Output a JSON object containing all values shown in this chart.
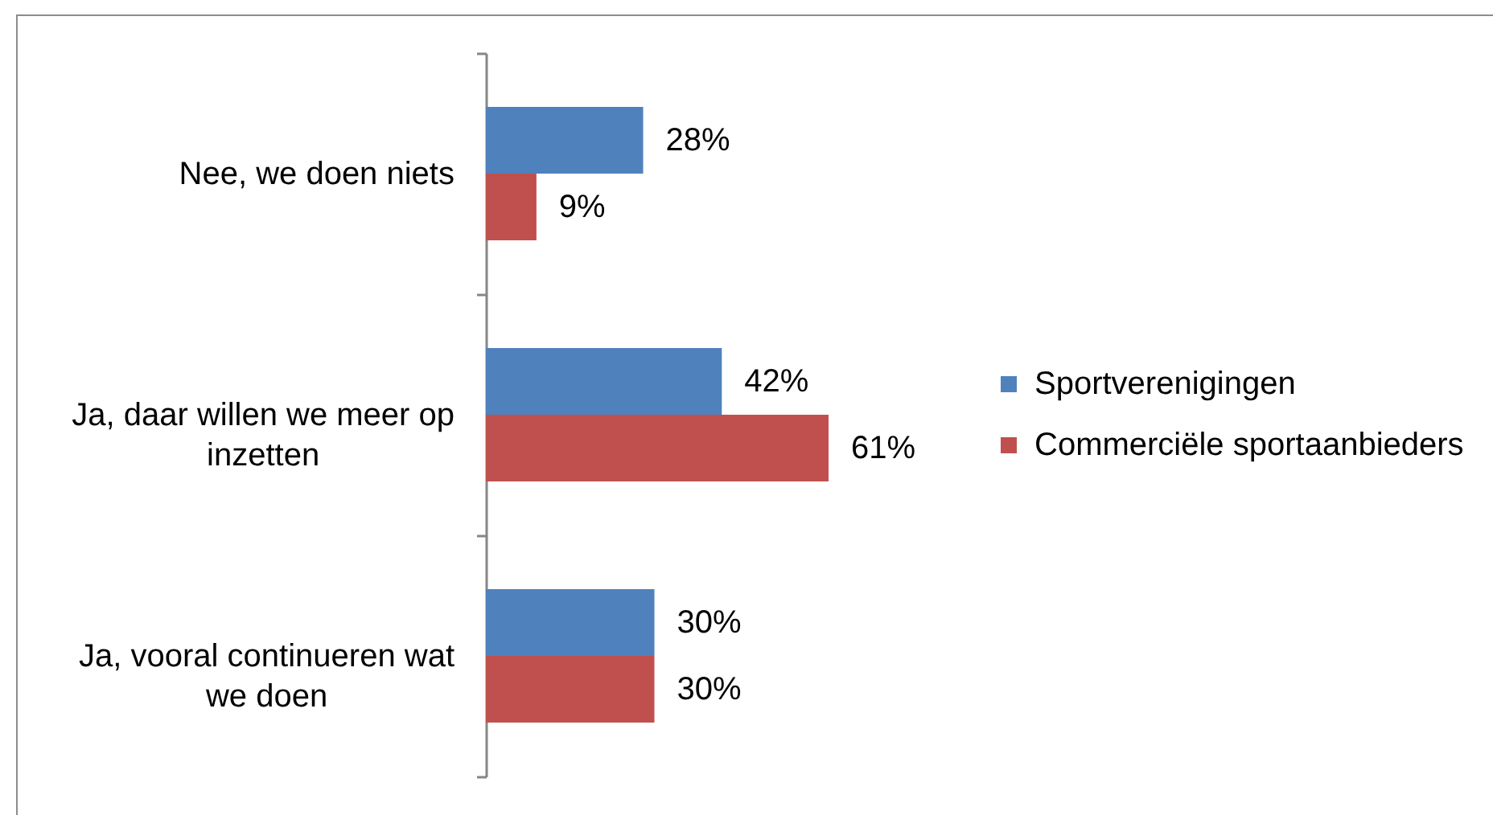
{
  "chart_data": {
    "type": "bar",
    "orientation": "horizontal",
    "categories": [
      "Nee, we doen niets",
      "Ja, daar willen we meer op inzetten",
      "Ja, vooral continueren wat we doen"
    ],
    "series": [
      {
        "name": "Sportverenigingen",
        "color": "#4f81bd",
        "values": [
          28,
          42,
          30
        ],
        "value_labels": [
          "28%",
          "42%",
          "30%"
        ]
      },
      {
        "name": "Commerciële sportaanbieders",
        "color": "#c0504d",
        "values": [
          9,
          61,
          30
        ],
        "value_labels": [
          "9%",
          "61%",
          "30%"
        ]
      }
    ],
    "legend": "right",
    "tick_labels": "y"
  }
}
